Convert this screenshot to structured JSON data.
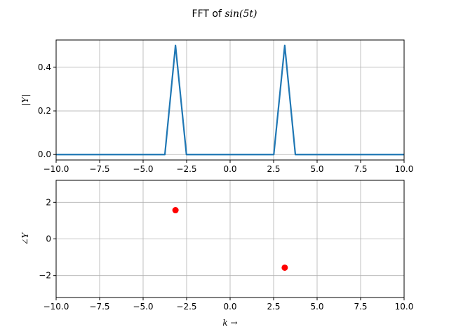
{
  "chart_data": [
    {
      "type": "line",
      "title_prefix": "FFT of ",
      "title_math": "sin(5t)",
      "ylabel": "|Y|",
      "xlim": [
        -10,
        10
      ],
      "ylim": [
        -0.025,
        0.525
      ],
      "xticks": [
        -10.0,
        -7.5,
        -5.0,
        -2.5,
        0.0,
        2.5,
        5.0,
        7.5,
        10.0
      ],
      "xtick_labels": [
        "−10.0",
        "−7.5",
        "−5.0",
        "−2.5",
        "0.0",
        "2.5",
        "5.0",
        "7.5",
        "10.0"
      ],
      "yticks": [
        0.0,
        0.2,
        0.4
      ],
      "ytick_labels": [
        "0.0",
        "0.2",
        "0.4"
      ],
      "grid": true,
      "color": "#1f77b4",
      "series": [
        {
          "x": [
            -10,
            -3.75,
            -3.14,
            -2.51,
            2.51,
            3.14,
            3.75,
            10
          ],
          "y": [
            0,
            0,
            0.5,
            0,
            0,
            0.5,
            0,
            0
          ]
        }
      ]
    },
    {
      "type": "scatter",
      "ylabel": "∠Y",
      "xlabel": "k →",
      "xlim": [
        -10,
        10
      ],
      "ylim": [
        -3.2,
        3.2
      ],
      "xticks": [
        -10.0,
        -7.5,
        -5.0,
        -2.5,
        0.0,
        2.5,
        5.0,
        7.5,
        10.0
      ],
      "xtick_labels": [
        "−10.0",
        "−7.5",
        "−5.0",
        "−2.5",
        "0.0",
        "2.5",
        "5.0",
        "7.5",
        "10.0"
      ],
      "yticks": [
        -2,
        0,
        2
      ],
      "ytick_labels": [
        "−2",
        "0",
        "2"
      ],
      "grid": true,
      "color": "#ff0000",
      "series": [
        {
          "x": [
            -3.14,
            3.14
          ],
          "y": [
            1.5708,
            -1.5708
          ]
        }
      ]
    }
  ]
}
